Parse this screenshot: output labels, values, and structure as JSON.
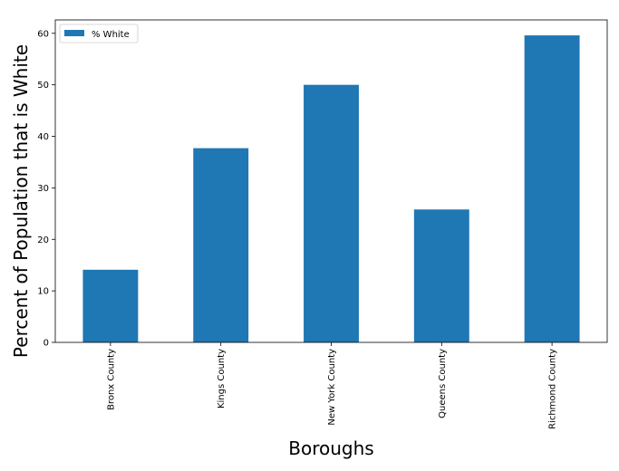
{
  "chart_data": {
    "type": "bar",
    "title": "",
    "xlabel": "Boroughs",
    "ylabel": "Percent of Population that is White",
    "categories": [
      "Bronx County",
      "Kings County",
      "New York County",
      "Queens County",
      "Richmond County"
    ],
    "series": [
      {
        "name": "% White",
        "color": "#1f77b4",
        "values": [
          14.1,
          37.7,
          50.0,
          25.8,
          59.6
        ]
      }
    ],
    "ylim": [
      0,
      62.6
    ],
    "yticks": [
      0,
      10,
      20,
      30,
      40,
      50,
      60
    ],
    "grid": false,
    "legend_position": "top-left",
    "x_tick_rotation": "vertical"
  }
}
